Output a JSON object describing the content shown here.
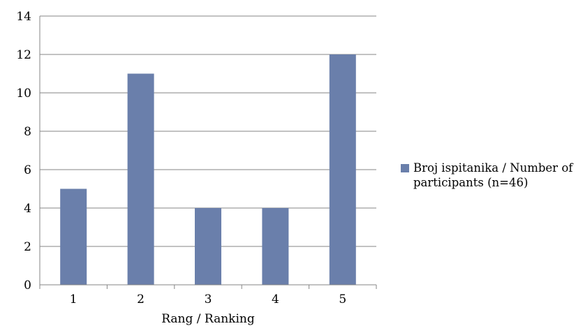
{
  "chart_data": {
    "type": "bar",
    "categories": [
      "1",
      "2",
      "3",
      "4",
      "5"
    ],
    "series": [
      {
        "name": "Broj ispitanika / Number of participants (n=46)",
        "values": [
          5,
          11,
          4,
          4,
          12
        ],
        "color": "#6a7fab"
      }
    ],
    "xlabel": "Rang / Ranking",
    "ylabel": "",
    "ylim": [
      0,
      14
    ],
    "yticks": [
      0,
      2,
      4,
      6,
      8,
      10,
      12,
      14
    ],
    "grid": true,
    "legend": "right"
  }
}
